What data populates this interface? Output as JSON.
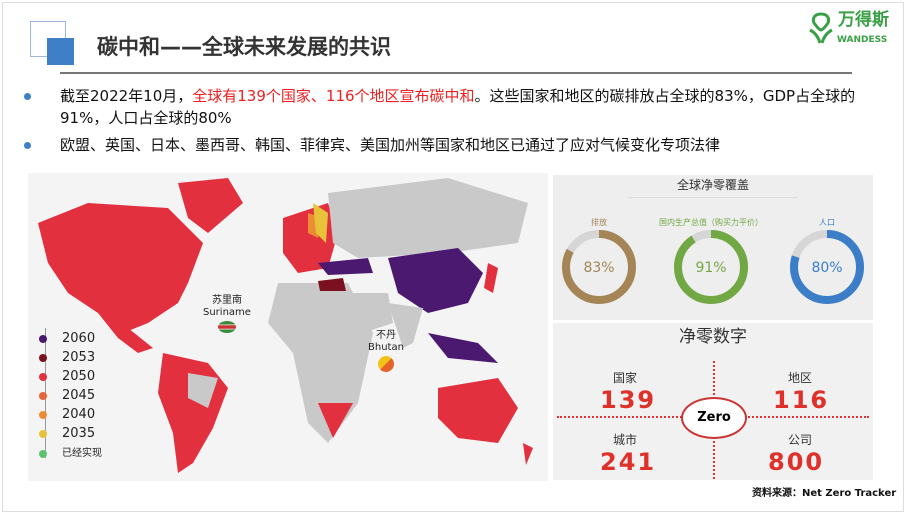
{
  "header": {
    "title": "碳中和——全球未来发展的共识",
    "logo_cn": "万得斯",
    "logo_en": "WANDESS"
  },
  "bullets": [
    {
      "pre": "截至2022年10月，",
      "highlight": "全球有139个国家、116个地区宣布碳中和",
      "post": "。这些国家和地区的碳排放占全球的83%，GDP占全球的91%，人口占全球的80%"
    },
    {
      "pre": "欧盟、英国、日本、墨西哥、韩国、菲律宾、美国加州等国家和地区已通过了应对气候变化专项法律",
      "highlight": "",
      "post": ""
    }
  ],
  "map": {
    "callouts": [
      {
        "cn": "苏里南",
        "en": "Suriname"
      },
      {
        "cn": "不丹",
        "en": "Bhutan"
      }
    ],
    "legend": [
      {
        "label": "2060",
        "color": "#4b1a70"
      },
      {
        "label": "2053",
        "color": "#7a1020"
      },
      {
        "label": "2050",
        "color": "#e2303f"
      },
      {
        "label": "2045",
        "color": "#e8643a"
      },
      {
        "label": "2040",
        "color": "#ec8c35"
      },
      {
        "label": "2035",
        "color": "#e8c33a"
      },
      {
        "label": "已经实现",
        "color": "#5cc36b"
      }
    ]
  },
  "coverage": {
    "title": "全球净零覆盖",
    "items": [
      {
        "label": "排放",
        "value": "83%",
        "fraction": 0.83,
        "color": "#a58556"
      },
      {
        "label": "国内生产总值（购买力平价）",
        "value": "91%",
        "fraction": 0.91,
        "color": "#72a843"
      },
      {
        "label": "人口",
        "value": "80%",
        "fraction": 0.8,
        "color": "#3b7dc6"
      }
    ]
  },
  "netzero": {
    "title": "净零数字",
    "center": "Zero",
    "items": [
      {
        "label": "国家",
        "value": "139"
      },
      {
        "label": "地区",
        "value": "116"
      },
      {
        "label": "城市",
        "value": "241"
      },
      {
        "label": "公司",
        "value": "800"
      }
    ]
  },
  "source": "资料来源：Net Zero Tracker"
}
